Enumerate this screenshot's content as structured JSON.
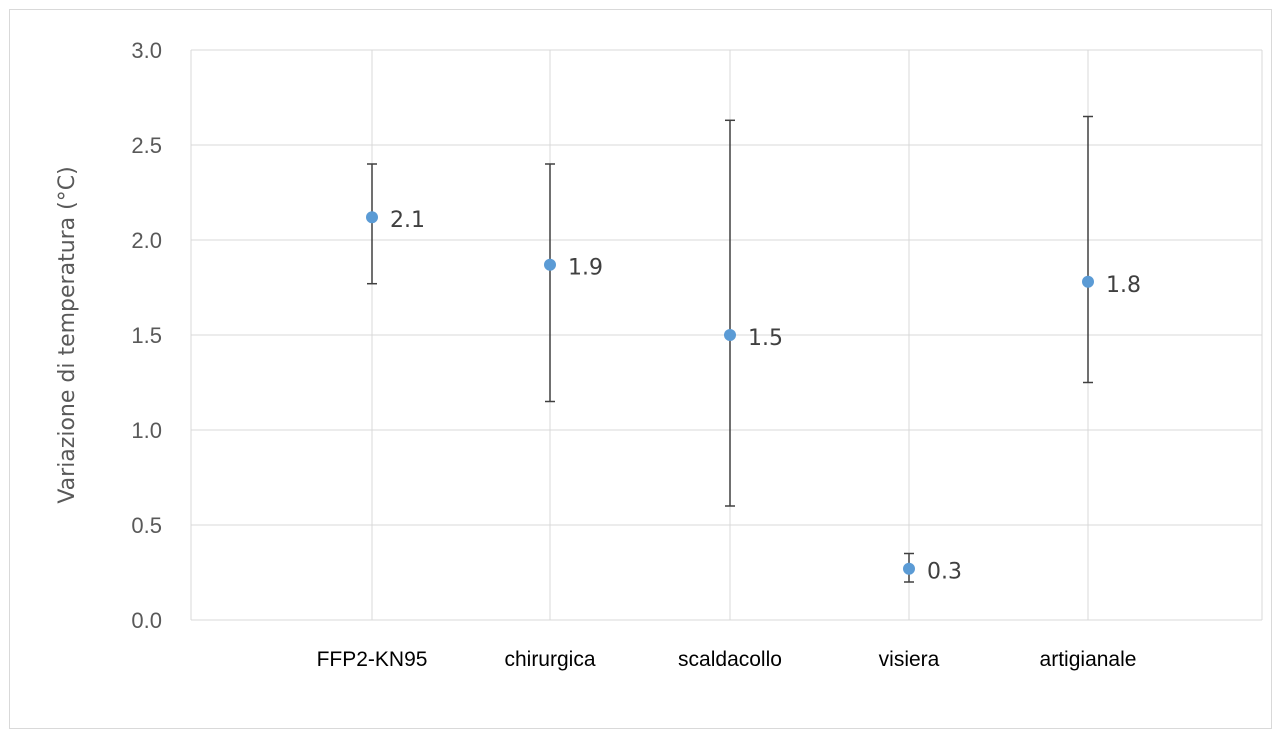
{
  "chart_data": {
    "type": "scatter",
    "title": "",
    "xlabel": "",
    "ylabel": "Variazione di temperatura (°C)",
    "ylim": [
      0,
      3
    ],
    "yticks": [
      "0.0",
      "0.5",
      "1.0",
      "1.5",
      "2.0",
      "2.5",
      "3.0"
    ],
    "grid": true,
    "categories": [
      "FFP2-KN95",
      "chirurgica",
      "scaldacollo",
      "visiera",
      "artigianale"
    ],
    "values": [
      2.12,
      1.87,
      1.5,
      0.27,
      1.78
    ],
    "data_labels": [
      "2.1",
      "1.9",
      "1.5",
      "0.3",
      "1.8"
    ],
    "error_low": [
      1.77,
      1.15,
      0.6,
      0.2,
      1.25
    ],
    "error_high": [
      2.4,
      2.4,
      2.63,
      0.35,
      2.65
    ],
    "marker_color": "#5b9bd5",
    "errorbar_color": "#404040"
  }
}
